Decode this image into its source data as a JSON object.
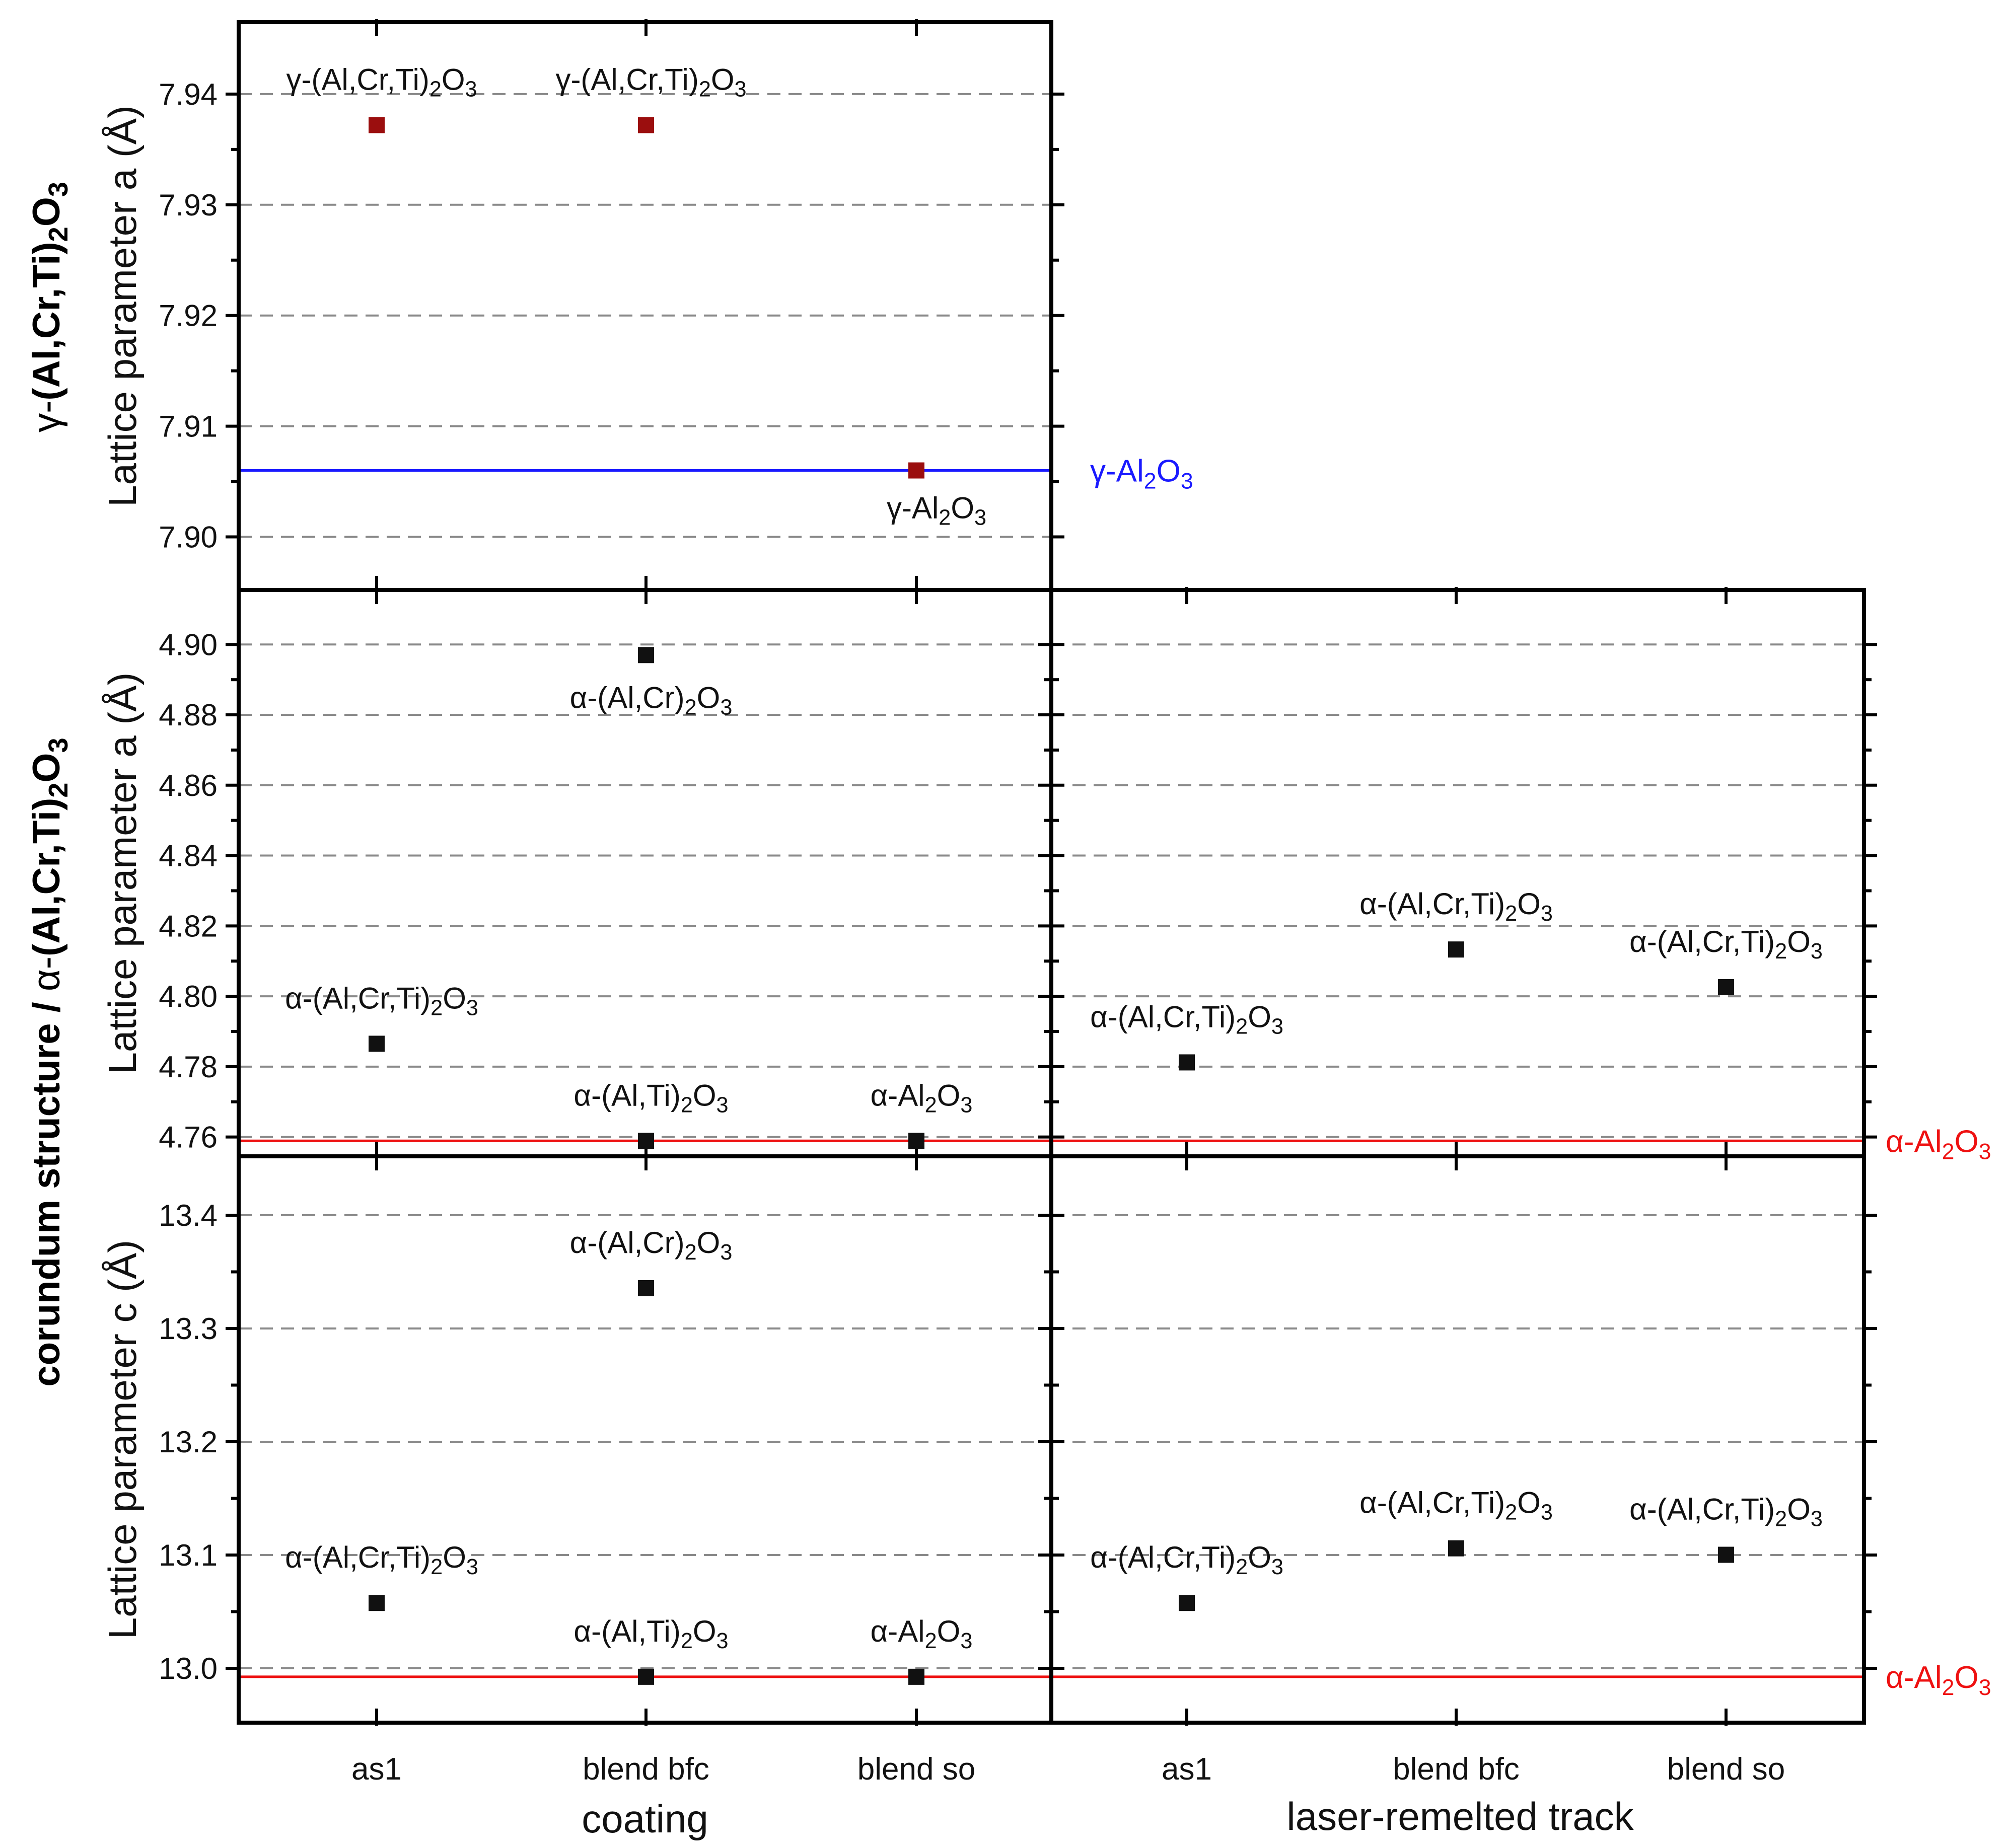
{
  "chart_data": [
    {
      "type": "scatter",
      "id": "gamma-a-coating",
      "row_title_main": "γ-",
      "row_title_formula": "(Al,Cr,Ti)2O3",
      "ylabel": "Lattice parameter a (Å)",
      "ylim": [
        7.8952,
        7.9465
      ],
      "yticks": [
        "7.90",
        "7.91",
        "7.92",
        "7.93",
        "7.94"
      ],
      "ytick_values": [
        7.9,
        7.91,
        7.92,
        7.93,
        7.94
      ],
      "grid": "dashed",
      "color": "#9b0e0e",
      "reference": {
        "value": 7.906,
        "label": "γ-Al2O3",
        "color": "#1a1aff"
      },
      "points": [
        {
          "category": "as1",
          "value": 7.9372,
          "label": "γ-(Al,Cr,Ti)2O3"
        },
        {
          "category": "blend bfc",
          "value": 7.9372,
          "label": "γ-(Al,Cr,Ti)2O3"
        },
        {
          "category": "blend so",
          "value": 7.906,
          "label": "γ-Al2O3"
        }
      ]
    },
    {
      "type": "scatter",
      "id": "alpha-a-coating",
      "ylabel": "Lattice parameter a (Å)",
      "ylim": [
        4.7545,
        4.9155
      ],
      "yticks": [
        "4.76",
        "4.78",
        "4.80",
        "4.82",
        "4.84",
        "4.86",
        "4.88",
        "4.90"
      ],
      "ytick_values": [
        4.76,
        4.78,
        4.8,
        4.82,
        4.84,
        4.86,
        4.88,
        4.9
      ],
      "grid": "dashed",
      "color": "#111111",
      "reference": {
        "value": 4.7589,
        "label": "α-Al2O3",
        "color": "#ee1111"
      },
      "points": [
        {
          "category": "as1",
          "value": 4.7865,
          "label": "α-(Al,Cr,Ti)2O3"
        },
        {
          "category": "blend bfc",
          "value": 4.897,
          "label": "α-(Al,Cr)2O3"
        },
        {
          "category": "blend bfc",
          "value": 4.7589,
          "label": "α-(Al,Ti)2O3"
        },
        {
          "category": "blend so",
          "value": 4.7589,
          "label": "α-Al2O3"
        }
      ]
    },
    {
      "type": "scatter",
      "id": "alpha-a-track",
      "ylim": [
        4.7545,
        4.9155
      ],
      "ytick_values": [
        4.76,
        4.78,
        4.8,
        4.82,
        4.84,
        4.86,
        4.88,
        4.9
      ],
      "grid": "dashed",
      "color": "#111111",
      "reference": {
        "value": 4.7589,
        "label": "α-Al2O3",
        "color": "#ee1111"
      },
      "points": [
        {
          "category": "as1",
          "value": 4.7812,
          "label": "α-(Al,Cr,Ti)2O3"
        },
        {
          "category": "blend bfc",
          "value": 4.8133,
          "label": "α-(Al,Cr,Ti)2O3"
        },
        {
          "category": "blend so",
          "value": 4.8026,
          "label": "α-(Al,Cr,Ti)2O3"
        }
      ]
    },
    {
      "type": "scatter",
      "id": "alpha-c-coating",
      "ylabel": "Lattice parameter c (Å)",
      "ylim": [
        12.952,
        13.452
      ],
      "yticks": [
        "13.0",
        "13.1",
        "13.2",
        "13.3",
        "13.4"
      ],
      "ytick_values": [
        13.0,
        13.1,
        13.2,
        13.3,
        13.4
      ],
      "grid": "dashed",
      "color": "#111111",
      "reference": {
        "value": 12.9925,
        "label": "α-Al2O3",
        "color": "#ee1111"
      },
      "points": [
        {
          "category": "as1",
          "value": 13.0577,
          "label": "α-(Al,Cr,Ti)2O3"
        },
        {
          "category": "blend bfc",
          "value": 13.3356,
          "label": "α-(Al,Cr)2O3"
        },
        {
          "category": "blend bfc",
          "value": 12.9925,
          "label": "α-(Al,Ti)2O3"
        },
        {
          "category": "blend so",
          "value": 12.9925,
          "label": "α-Al2O3"
        }
      ]
    },
    {
      "type": "scatter",
      "id": "alpha-c-track",
      "ylim": [
        12.952,
        13.452
      ],
      "ytick_values": [
        13.0,
        13.1,
        13.2,
        13.3,
        13.4
      ],
      "grid": "dashed",
      "color": "#111111",
      "reference": {
        "value": 12.9925,
        "label": "α-Al2O3",
        "color": "#ee1111"
      },
      "points": [
        {
          "category": "as1",
          "value": 13.0577,
          "label": "α-(Al,Cr,Ti)2O3"
        },
        {
          "category": "blend bfc",
          "value": 13.1059,
          "label": "α-(Al,Cr,Ti)2O3"
        },
        {
          "category": "blend so",
          "value": 13.1002,
          "label": "α-(Al,Cr,Ti)2O3"
        }
      ]
    }
  ],
  "row_titles": {
    "top": {
      "prefix": "γ-",
      "bold_part": "(Al,Cr,Ti)2O3"
    },
    "bottom": {
      "bold_prefix": "corundum structure / ",
      "alpha": "α-",
      "bold_part": "(Al,Cr,Ti)2O3"
    }
  },
  "categories": [
    "as1",
    "blend bfc",
    "blend so"
  ],
  "xlabels": {
    "left": "coating",
    "right": "laser-remelted track"
  }
}
